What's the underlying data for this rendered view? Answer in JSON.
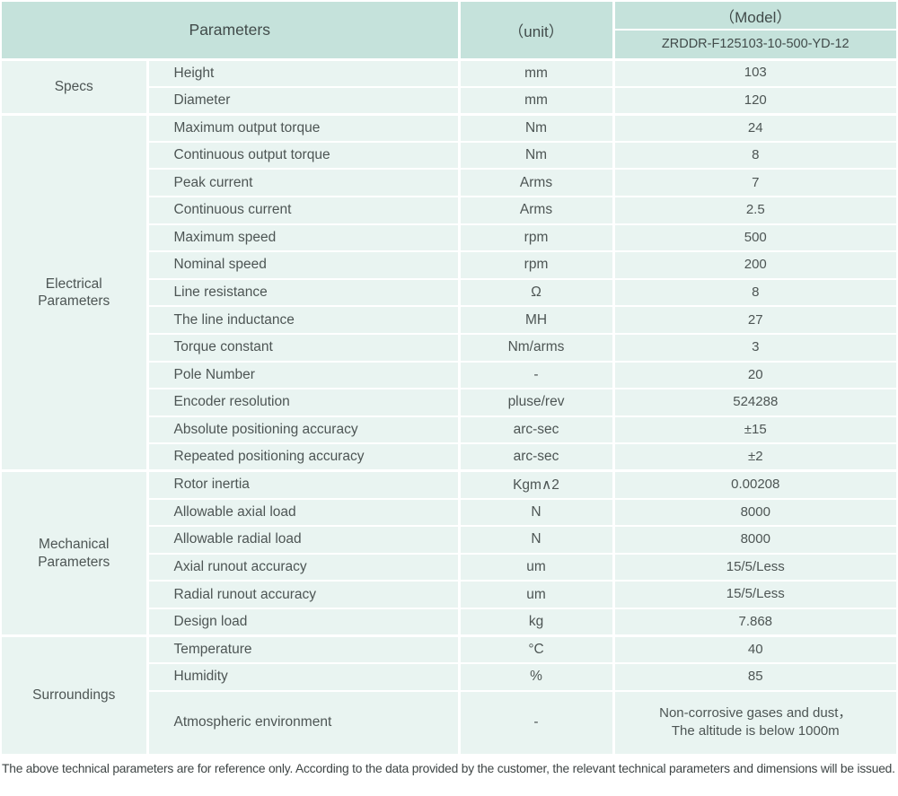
{
  "header": {
    "parameters_label": "Parameters",
    "unit_label": "（unit）",
    "model_label": "（Model）",
    "model_value": "ZRDDR-F125103-10-500-YD-12"
  },
  "groups": [
    {
      "label": "Specs",
      "rows": [
        {
          "name": "Height",
          "unit": "mm",
          "value": "103"
        },
        {
          "name": "Diameter",
          "unit": "mm",
          "value": "120"
        }
      ]
    },
    {
      "label": "Electrical\nParameters",
      "rows": [
        {
          "name": "Maximum output torque",
          "unit": "Nm",
          "value": "24"
        },
        {
          "name": "Continuous output torque",
          "unit": "Nm",
          "value": "8"
        },
        {
          "name": "Peak current",
          "unit": "Arms",
          "value": "7"
        },
        {
          "name": "Continuous current",
          "unit": "Arms",
          "value": "2.5"
        },
        {
          "name": "Maximum speed",
          "unit": "rpm",
          "value": "500"
        },
        {
          "name": "Nominal speed",
          "unit": "rpm",
          "value": "200"
        },
        {
          "name": "Line resistance",
          "unit": "Ω",
          "value": "8"
        },
        {
          "name": "The line inductance",
          "unit": "MH",
          "value": "27"
        },
        {
          "name": "Torque constant",
          "unit": "Nm/arms",
          "value": "3"
        },
        {
          "name": "Pole Number",
          "unit": "-",
          "value": "20"
        },
        {
          "name": "Encoder resolution",
          "unit": "pluse/rev",
          "value": "524288"
        },
        {
          "name": "Absolute positioning accuracy",
          "unit": "arc-sec",
          "value": "±15"
        },
        {
          "name": "Repeated positioning accuracy",
          "unit": "arc-sec",
          "value": "±2"
        }
      ]
    },
    {
      "label": "Mechanical\nParameters",
      "rows": [
        {
          "name": "Rotor inertia",
          "unit": "Kgm∧2",
          "value": "0.00208"
        },
        {
          "name": "Allowable axial load",
          "unit": "N",
          "value": "8000"
        },
        {
          "name": "Allowable radial load",
          "unit": "N",
          "value": "8000"
        },
        {
          "name": "Axial runout accuracy",
          "unit": "um",
          "value": "15/5/Less"
        },
        {
          "name": "Radial runout accuracy",
          "unit": "um",
          "value": "15/5/Less"
        },
        {
          "name": "Design load",
          "unit": "kg",
          "value": "7.868"
        }
      ]
    },
    {
      "label": "Surroundings",
      "rows": [
        {
          "name": "Temperature",
          "unit": "°C",
          "value": "40"
        },
        {
          "name": "Humidity",
          "unit": "%",
          "value": "85"
        },
        {
          "name": "Atmospheric environment",
          "unit": "-",
          "value": "Non-corrosive gases and dust，\nThe altitude is below 1000m",
          "tall": true
        }
      ]
    }
  ],
  "footer": {
    "note": "The above technical parameters are for reference only. According to the data provided by the customer, the relevant technical parameters and dimensions will be issued."
  },
  "colors": {
    "header_bg": "#c5e2db",
    "row_bg": "#e9f4f1",
    "divider": "#ffffff",
    "header_text": "#414b4a",
    "body_text": "#4d5554"
  }
}
